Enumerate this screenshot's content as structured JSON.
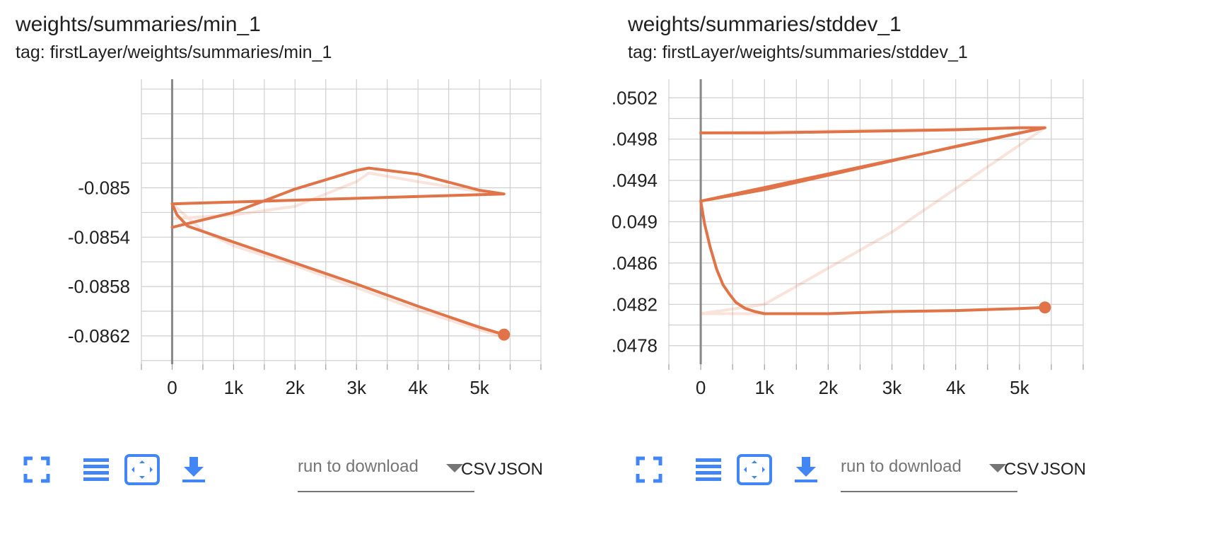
{
  "cards": [
    {
      "title": "weights/summaries/min_1",
      "tag": "tag: firstLayer/weights/summaries/min_1",
      "download": {
        "placeholder": "run to download",
        "csv": "CSV",
        "json": "JSON"
      },
      "chart_data": {
        "type": "line",
        "title": "weights/summaries/min_1",
        "xlabel": "",
        "ylabel": "",
        "xlim": [
          -500,
          6000
        ],
        "ylim": [
          -0.08643,
          -0.08412
        ],
        "x_ticks": [
          0,
          1000,
          2000,
          3000,
          4000,
          5000
        ],
        "x_tick_labels": [
          "0",
          "1k",
          "2k",
          "3k",
          "4k",
          "5k"
        ],
        "y_ticks": [
          -0.085,
          -0.0854,
          -0.0858,
          -0.0862
        ],
        "y_tick_labels": [
          "-0.085",
          "-0.0854",
          "-0.0858",
          "-0.0862"
        ],
        "grid": true,
        "series": [
          {
            "color": "#e07448",
            "end_marker": true,
            "smoothed": [
              [
                0,
                -0.08532
              ],
              [
                1000,
                -0.0852
              ],
              [
                2000,
                -0.08501
              ],
              [
                3000,
                -0.08486
              ],
              [
                3200,
                -0.08484
              ],
              [
                4000,
                -0.08489
              ],
              [
                5000,
                -0.08502
              ],
              [
                5400,
                -0.08505
              ],
              [
                0,
                -0.08513
              ],
              [
                80,
                -0.08522
              ],
              [
                250,
                -0.08531
              ],
              [
                1000,
                -0.08544
              ],
              [
                2000,
                -0.08561
              ],
              [
                3000,
                -0.08578
              ],
              [
                4000,
                -0.08596
              ],
              [
                5000,
                -0.08613
              ],
              [
                5400,
                -0.08619
              ]
            ],
            "raw": [
              [
                0,
                -0.08525
              ],
              [
                1000,
                -0.08522
              ],
              [
                2000,
                -0.08515
              ],
              [
                3000,
                -0.08495
              ],
              [
                3200,
                -0.08488
              ],
              [
                4000,
                -0.08495
              ],
              [
                5000,
                -0.08503
              ],
              [
                5400,
                -0.08505
              ],
              [
                0,
                -0.08513
              ],
              [
                500,
                -0.08535
              ],
              [
                1000,
                -0.08547
              ],
              [
                2000,
                -0.08563
              ],
              [
                3000,
                -0.08581
              ],
              [
                4000,
                -0.08599
              ],
              [
                5000,
                -0.08615
              ],
              [
                5400,
                -0.08621
              ]
            ]
          }
        ]
      }
    },
    {
      "title": "weights/summaries/stddev_1",
      "tag": "tag: firstLayer/weights/summaries/stddev_1",
      "download": {
        "placeholder": "run to download",
        "csv": "CSV",
        "json": "JSON"
      },
      "chart_data": {
        "type": "line",
        "title": "weights/summaries/stddev_1",
        "xlabel": "",
        "ylabel": "",
        "xlim": [
          -500,
          6000
        ],
        "ylim": [
          0.04762,
          0.05038
        ],
        "x_ticks": [
          0,
          1000,
          2000,
          3000,
          4000,
          5000
        ],
        "x_tick_labels": [
          "0",
          "1k",
          "2k",
          "3k",
          "4k",
          "5k"
        ],
        "y_ticks": [
          0.0502,
          0.0498,
          0.0494,
          0.049,
          0.0486,
          0.0482,
          0.0478
        ],
        "y_tick_labels": [
          "0.0502",
          "0.0498",
          "0.0494",
          "0.049",
          "0.0486",
          "0.0482",
          "0.0478"
        ],
        "grid": true,
        "series": [
          {
            "color": "#e07448",
            "end_marker": true,
            "smoothed": [
              [
                0,
                0.04986
              ],
              [
                1000,
                0.04986
              ],
              [
                2000,
                0.04987
              ],
              [
                3000,
                0.04988
              ],
              [
                4000,
                0.04989
              ],
              [
                5000,
                0.04991
              ],
              [
                5400,
                0.04991
              ],
              [
                0,
                0.0492
              ],
              [
                1000,
                0.04931
              ],
              [
                2000,
                0.04945
              ],
              [
                3000,
                0.04959
              ],
              [
                4000,
                0.04973
              ],
              [
                5000,
                0.04986
              ],
              [
                5400,
                0.04991
              ],
              [
                0,
                0.0492
              ],
              [
                60,
                0.04898
              ],
              [
                150,
                0.04875
              ],
              [
                250,
                0.04854
              ],
              [
                350,
                0.04839
              ],
              [
                450,
                0.0483
              ],
              [
                550,
                0.04822
              ],
              [
                700,
                0.04816
              ],
              [
                850,
                0.04813
              ],
              [
                1000,
                0.04811
              ],
              [
                1500,
                0.04811
              ],
              [
                2000,
                0.04811
              ],
              [
                3000,
                0.04813
              ],
              [
                4000,
                0.04814
              ],
              [
                5000,
                0.04816
              ],
              [
                5400,
                0.04817
              ]
            ],
            "raw": [
              [
                0,
                0.04986
              ],
              [
                5400,
                0.04991
              ],
              [
                3000,
                0.0489
              ],
              [
                1000,
                0.0482
              ],
              [
                0,
                0.04811
              ],
              [
                1000,
                0.04811
              ],
              [
                2000,
                0.04811
              ],
              [
                3000,
                0.04813
              ],
              [
                4000,
                0.04814
              ],
              [
                5000,
                0.04816
              ],
              [
                5400,
                0.04817
              ]
            ]
          }
        ]
      }
    }
  ],
  "icons": {
    "fullscreen": "fullscreen-icon",
    "data_toggle": "list-icon",
    "fit_domain": "fit-domain-icon",
    "download": "download-icon",
    "dropdown": "dropdown-arrow-icon",
    "accent": "#4285f4"
  }
}
